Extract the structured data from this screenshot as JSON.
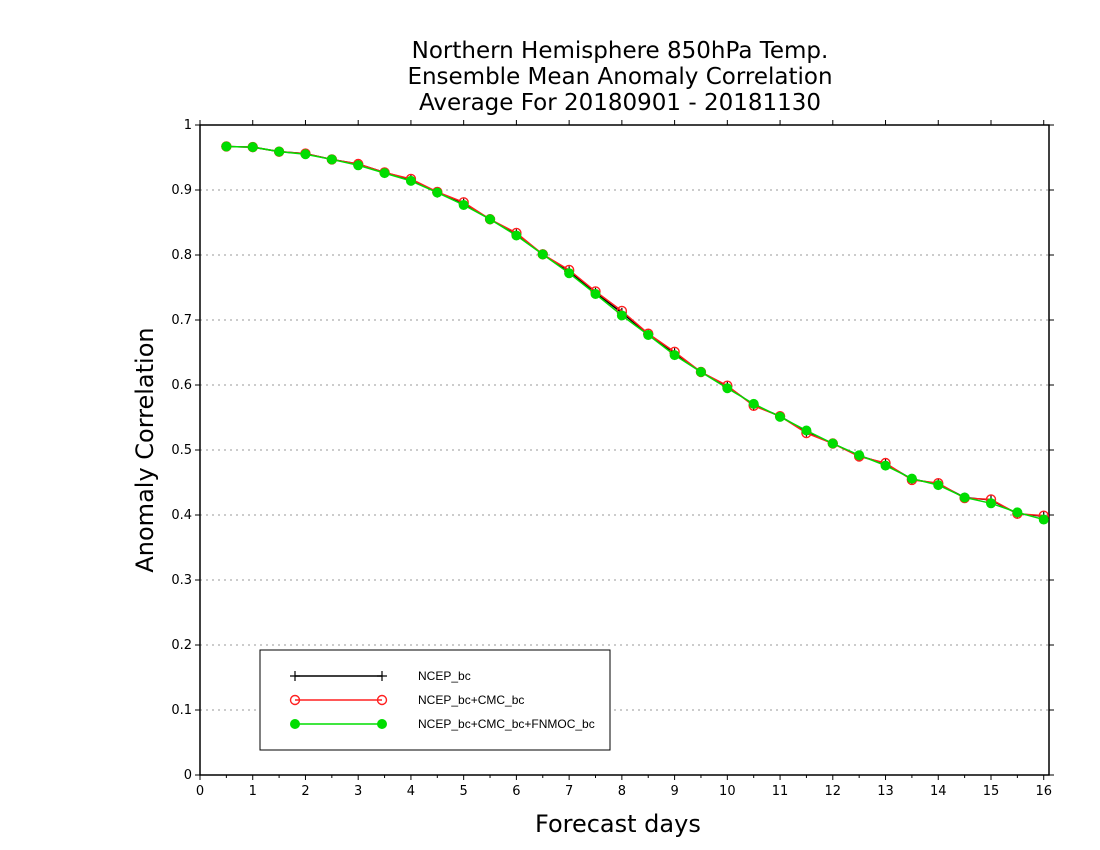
{
  "chart_data": {
    "type": "line",
    "title": [
      "Northern Hemisphere 850hPa Temp.",
      "Ensemble Mean Anomaly Correlation",
      "Average For 20180901 - 20181130"
    ],
    "xlabel": "Forecast days",
    "ylabel": "Anomaly Correlation",
    "xlim": [
      0,
      16.1
    ],
    "ylim": [
      0,
      1
    ],
    "xticks": [
      0,
      1,
      2,
      3,
      4,
      5,
      6,
      7,
      8,
      9,
      10,
      11,
      12,
      13,
      14,
      15,
      16
    ],
    "yticks": [
      0,
      0.1,
      0.2,
      0.3,
      0.4,
      0.5,
      0.6,
      0.7,
      0.8,
      0.9,
      1
    ],
    "grid": "horizontal dotted",
    "legend_position": "bottom-left",
    "x": [
      0.5,
      1,
      1.5,
      2,
      2.5,
      3,
      3.5,
      4,
      4.5,
      5,
      5.5,
      6,
      6.5,
      7,
      7.5,
      8,
      8.5,
      9,
      9.5,
      10,
      10.5,
      11,
      11.5,
      12,
      12.5,
      13,
      13.5,
      14,
      14.5,
      15,
      15.5,
      16
    ],
    "series": [
      {
        "name": "NCEP_bc",
        "color": "#000000",
        "marker": "plus",
        "values": [
          0.967,
          0.966,
          0.959,
          0.956,
          0.947,
          0.94,
          0.927,
          0.916,
          0.896,
          0.879,
          0.855,
          0.832,
          0.801,
          0.775,
          0.742,
          0.711,
          0.678,
          0.649,
          0.62,
          0.598,
          0.569,
          0.552,
          0.528,
          0.51,
          0.491,
          0.479,
          0.455,
          0.448,
          0.427,
          0.423,
          0.402,
          0.398
        ]
      },
      {
        "name": "NCEP_bc+CMC_bc",
        "color": "#ff2020",
        "marker": "open-circle",
        "values": [
          0.967,
          0.966,
          0.959,
          0.956,
          0.947,
          0.94,
          0.927,
          0.917,
          0.897,
          0.881,
          0.855,
          0.834,
          0.801,
          0.777,
          0.744,
          0.714,
          0.679,
          0.651,
          0.62,
          0.599,
          0.568,
          0.552,
          0.526,
          0.51,
          0.49,
          0.48,
          0.454,
          0.449,
          0.426,
          0.424,
          0.402,
          0.399
        ]
      },
      {
        "name": "NCEP_bc+CMC_bc+FNMOC_bc",
        "color": "#00dd00",
        "marker": "filled-circle",
        "values": [
          0.967,
          0.966,
          0.959,
          0.955,
          0.947,
          0.938,
          0.926,
          0.914,
          0.896,
          0.877,
          0.855,
          0.83,
          0.801,
          0.772,
          0.74,
          0.707,
          0.677,
          0.646,
          0.62,
          0.595,
          0.571,
          0.551,
          0.53,
          0.51,
          0.492,
          0.476,
          0.456,
          0.446,
          0.427,
          0.418,
          0.404,
          0.393
        ]
      }
    ]
  }
}
